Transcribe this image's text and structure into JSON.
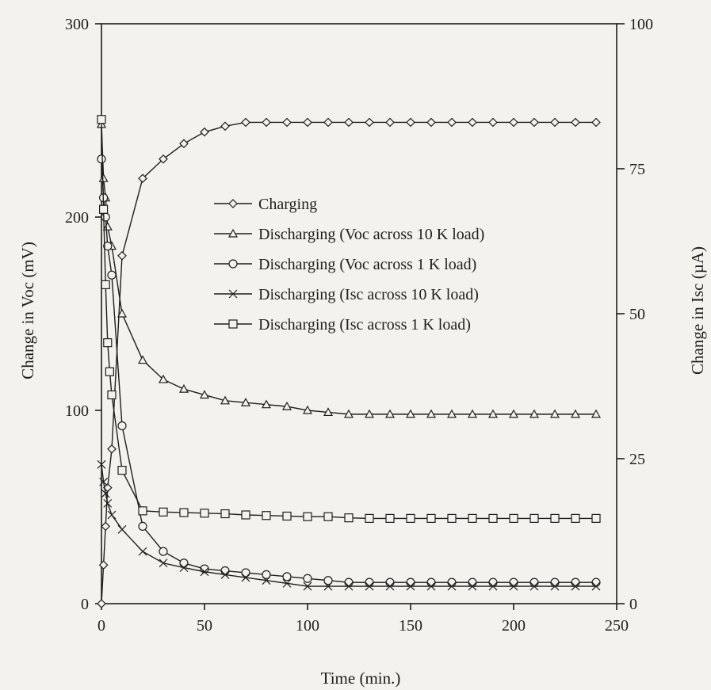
{
  "chart_data": {
    "type": "line",
    "xlabel": "Time (min.)",
    "ylabel": "Change in Voc (mV)",
    "y2label": "Change in Isc (µA)",
    "xlim": [
      0,
      250
    ],
    "ylim": [
      0,
      300
    ],
    "y2lim": [
      0,
      100
    ],
    "xticks": [
      0,
      50,
      100,
      150,
      200,
      250
    ],
    "yticks": [
      0,
      100,
      200,
      300
    ],
    "y2ticks": [
      0,
      25,
      50,
      75,
      100
    ],
    "grid": false,
    "legend_position": "center",
    "series": [
      {
        "name": "Charging",
        "marker": "diamond",
        "axis": "left",
        "x": [
          0,
          1,
          2,
          3,
          5,
          10,
          20,
          30,
          40,
          50,
          60,
          70,
          80,
          90,
          100,
          110,
          120,
          130,
          140,
          150,
          160,
          170,
          180,
          190,
          200,
          210,
          220,
          230,
          240
        ],
        "y": [
          0,
          20,
          40,
          60,
          80,
          180,
          220,
          230,
          238,
          244,
          247,
          249,
          249,
          249,
          249,
          249,
          249,
          249,
          249,
          249,
          249,
          249,
          249,
          249,
          249,
          249,
          249,
          249,
          249
        ]
      },
      {
        "name": "Discharging (Voc across 10 K load)",
        "marker": "triangle",
        "axis": "left",
        "x": [
          0,
          1,
          2,
          3,
          5,
          10,
          20,
          30,
          40,
          50,
          60,
          70,
          80,
          90,
          100,
          110,
          120,
          130,
          140,
          150,
          160,
          170,
          180,
          190,
          200,
          210,
          220,
          230,
          240
        ],
        "y": [
          248,
          220,
          210,
          195,
          185,
          150,
          126,
          116,
          111,
          108,
          105,
          104,
          103,
          102,
          100,
          99,
          98,
          98,
          98,
          98,
          98,
          98,
          98,
          98,
          98,
          98,
          98,
          98,
          98
        ]
      },
      {
        "name": "Discharging (Voc across 1 K load)",
        "marker": "circle",
        "axis": "left",
        "x": [
          0,
          1,
          2,
          3,
          5,
          10,
          20,
          30,
          40,
          50,
          60,
          70,
          80,
          90,
          100,
          110,
          120,
          130,
          140,
          150,
          160,
          170,
          180,
          190,
          200,
          210,
          220,
          230,
          240
        ],
        "y": [
          230,
          210,
          200,
          185,
          170,
          92,
          40,
          27,
          21,
          18,
          17,
          16,
          15,
          14,
          13,
          12,
          11,
          11,
          11,
          11,
          11,
          11,
          11,
          11,
          11,
          11,
          11,
          11,
          11
        ]
      },
      {
        "name": "Discharging (Isc across 10 K load)",
        "marker": "cross",
        "axis": "right",
        "x": [
          0,
          1,
          2,
          3,
          5,
          10,
          20,
          30,
          40,
          50,
          60,
          70,
          80,
          90,
          100,
          110,
          120,
          130,
          140,
          150,
          160,
          170,
          180,
          190,
          200,
          210,
          220,
          230,
          240
        ],
        "y": [
          24,
          21,
          19,
          17.3,
          15.3,
          12.8,
          9,
          7,
          6.2,
          5.5,
          5,
          4.5,
          4,
          3.5,
          3,
          3,
          3,
          3,
          3,
          3,
          3,
          3,
          3,
          3,
          3,
          3,
          3,
          3,
          3
        ]
      },
      {
        "name": "Discharging (Isc across 1 K load)",
        "marker": "square",
        "axis": "right",
        "x": [
          0,
          1,
          2,
          3,
          4,
          5,
          10,
          20,
          30,
          40,
          50,
          60,
          70,
          80,
          90,
          100,
          110,
          120,
          130,
          140,
          150,
          160,
          170,
          180,
          190,
          200,
          210,
          220,
          230,
          240
        ],
        "y": [
          83.5,
          68,
          55,
          45,
          40,
          36,
          23,
          16,
          15.8,
          15.7,
          15.6,
          15.5,
          15.3,
          15.2,
          15.1,
          15,
          15,
          14.8,
          14.7,
          14.7,
          14.7,
          14.7,
          14.7,
          14.7,
          14.7,
          14.7,
          14.7,
          14.7,
          14.7,
          14.7
        ]
      }
    ]
  }
}
